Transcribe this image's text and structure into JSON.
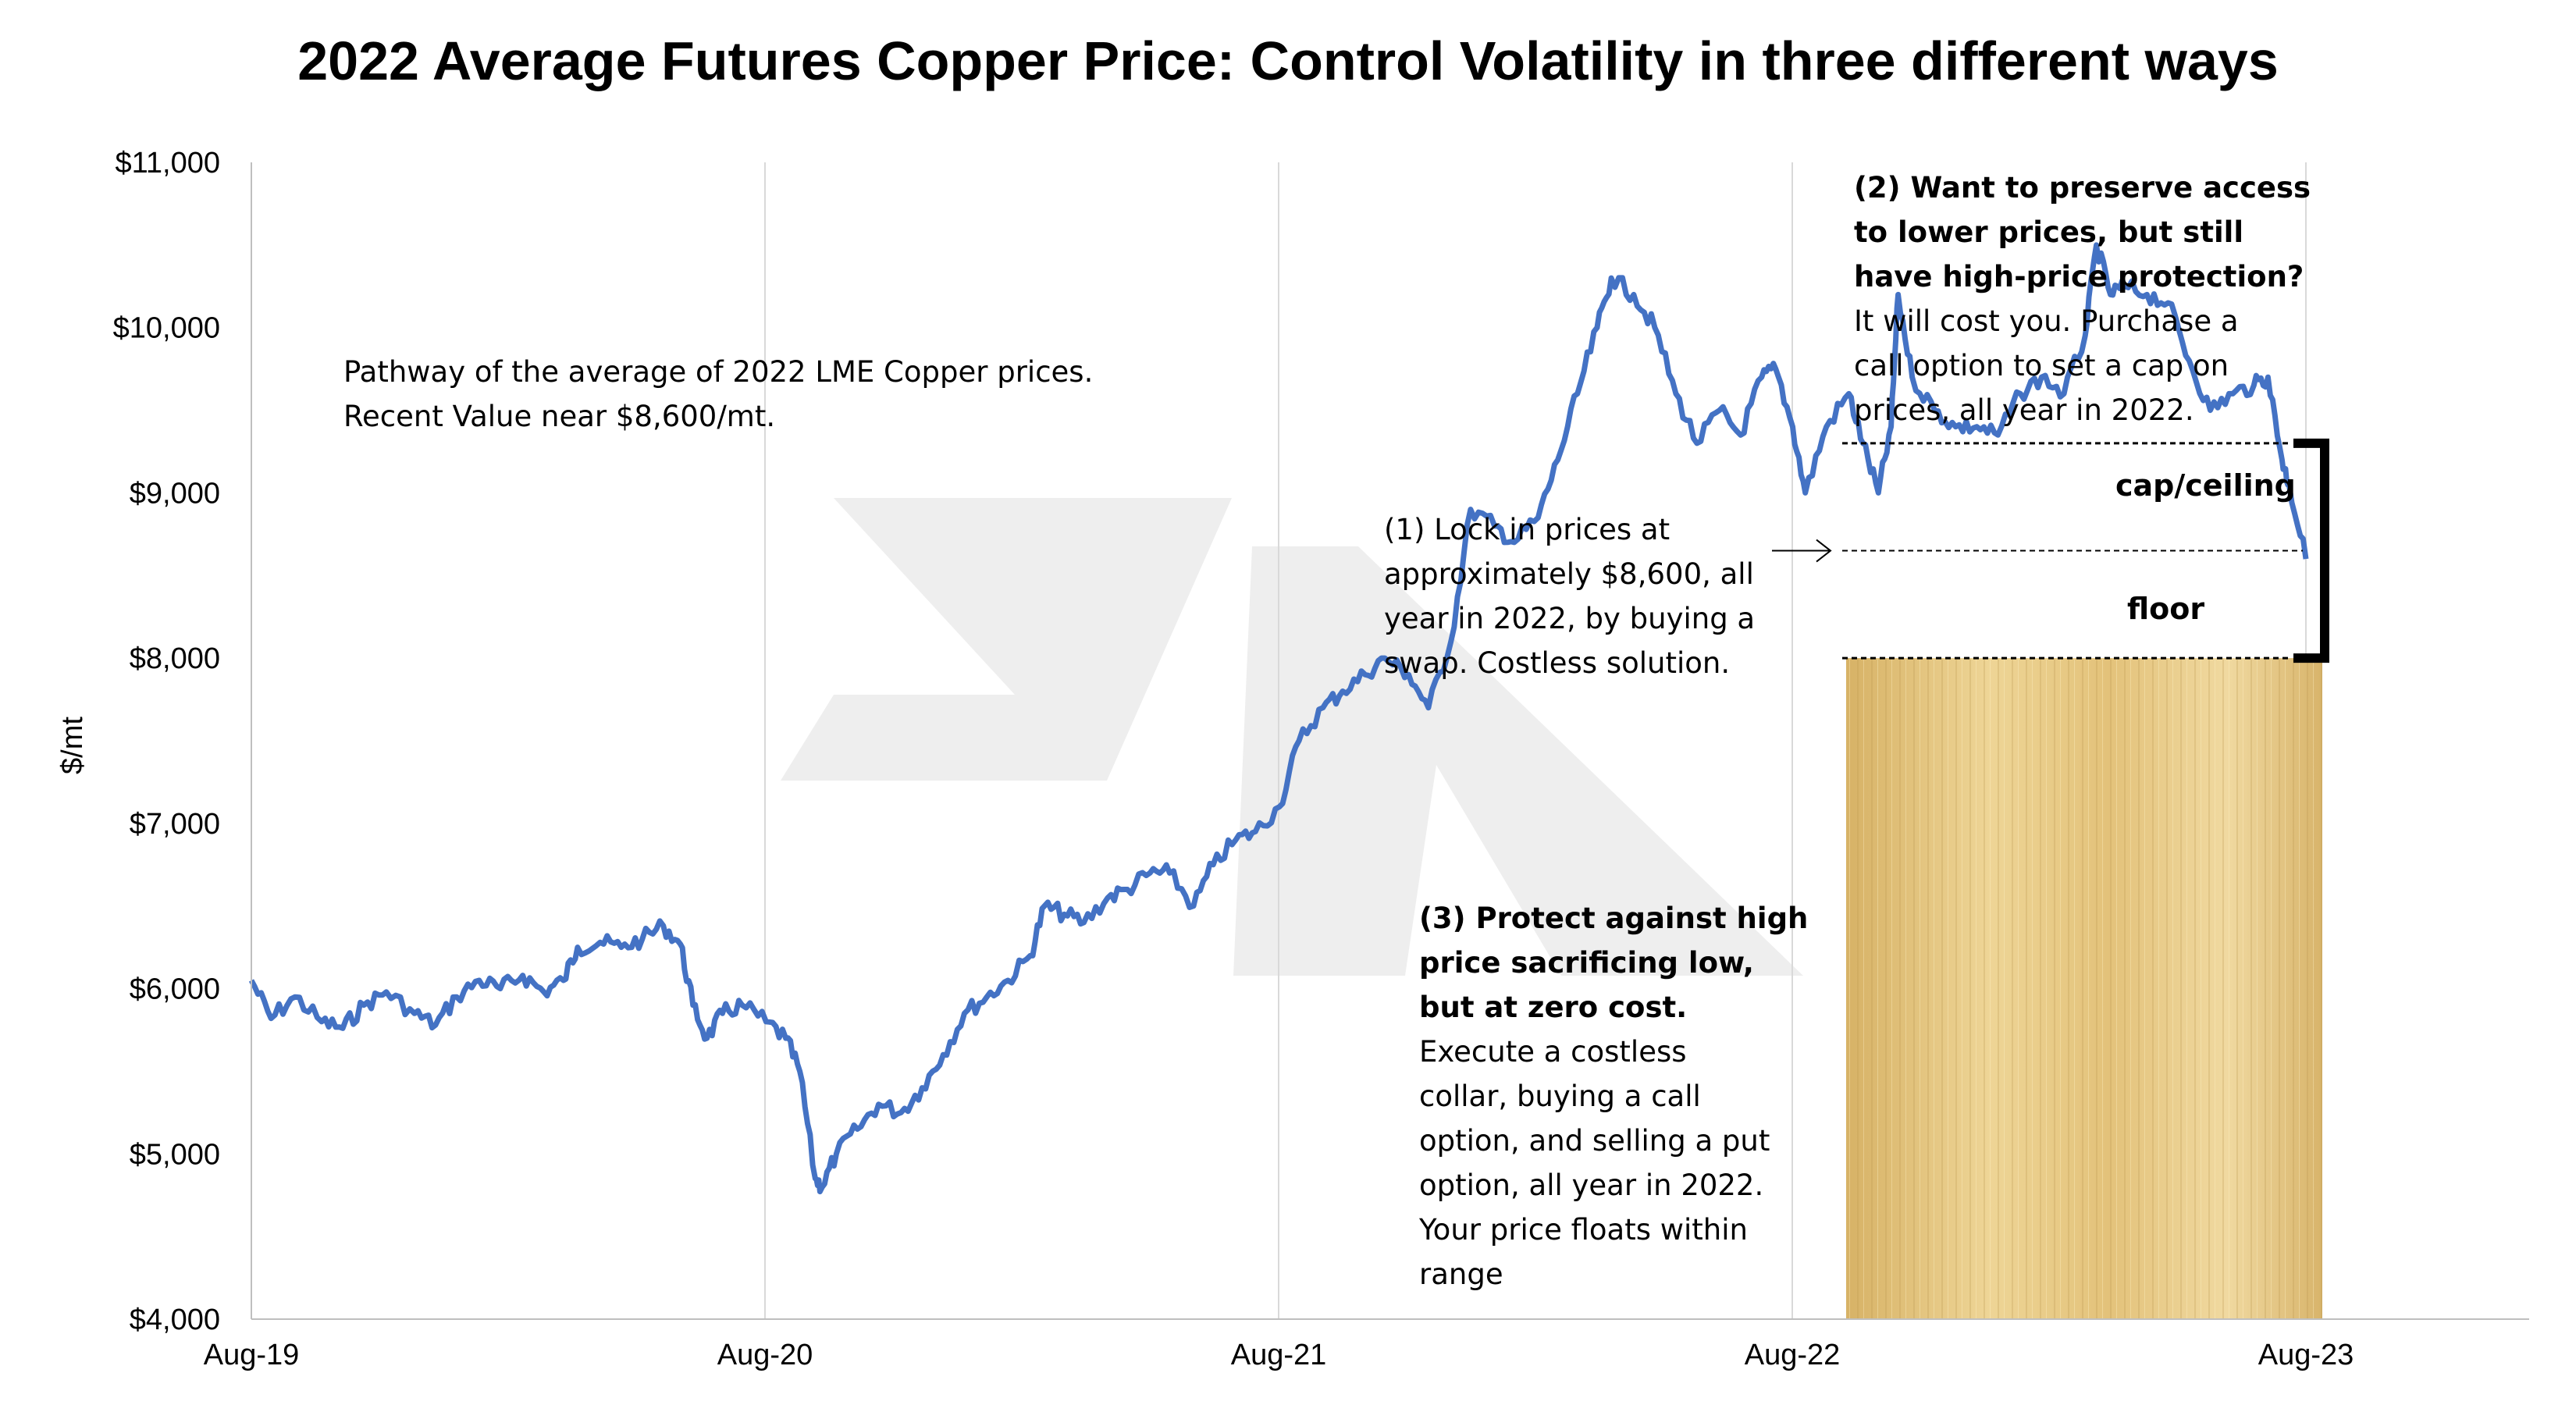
{
  "chart_data": {
    "type": "line",
    "title": "2022 Average Futures Copper Price: Control Volatility in three different ways",
    "xlabel": "",
    "ylabel": "$/mt",
    "ylim": [
      4000,
      11000
    ],
    "y_ticks": [
      4000,
      5000,
      6000,
      7000,
      8000,
      9000,
      10000,
      11000
    ],
    "y_tick_labels": [
      "$4,000",
      "$5,000",
      "$6,000",
      "$7,000",
      "$8,000",
      "$9,000",
      "$10,000",
      "$11,000"
    ],
    "x_tick_labels": [
      "Aug-19",
      "Aug-20",
      "Aug-21",
      "Aug-22",
      "Aug-23"
    ],
    "xlim": [
      "2019-08",
      "2023-12"
    ],
    "grid": "vertical lines at x ticks",
    "line_color": "#4472C4",
    "series": [
      {
        "points": [
          [
            "2019-08-01",
            6050
          ],
          [
            "2019-08-15",
            5820
          ],
          [
            "2019-09-01",
            5950
          ],
          [
            "2019-09-20",
            5800
          ],
          [
            "2019-10-05",
            5760
          ],
          [
            "2019-10-20",
            5900
          ],
          [
            "2019-11-05",
            5980
          ],
          [
            "2019-11-25",
            5850
          ],
          [
            "2019-12-10",
            5780
          ],
          [
            "2019-12-25",
            5950
          ],
          [
            "2020-01-10",
            6050
          ],
          [
            "2020-01-25",
            6000
          ],
          [
            "2020-02-10",
            6080
          ],
          [
            "2020-02-25",
            5980
          ],
          [
            "2020-03-10",
            6050
          ],
          [
            "2020-03-20",
            6250
          ],
          [
            "2020-04-05",
            6280
          ],
          [
            "2020-04-20",
            6250
          ],
          [
            "2020-05-05",
            6300
          ],
          [
            "2020-05-20",
            6380
          ],
          [
            "2020-06-01",
            6270
          ],
          [
            "2020-06-10",
            5900
          ],
          [
            "2020-06-20",
            5700
          ],
          [
            "2020-07-01",
            5850
          ],
          [
            "2020-07-15",
            5900
          ],
          [
            "2020-08-01",
            5800
          ],
          [
            "2020-08-15",
            5700
          ],
          [
            "2020-08-25",
            5500
          ],
          [
            "2020-09-05",
            4850
          ],
          [
            "2020-09-10",
            4800
          ],
          [
            "2020-09-20",
            5000
          ],
          [
            "2020-10-05",
            5150
          ],
          [
            "2020-10-20",
            5300
          ],
          [
            "2020-11-05",
            5250
          ],
          [
            "2020-11-20",
            5400
          ],
          [
            "2020-12-05",
            5600
          ],
          [
            "2020-12-20",
            5850
          ],
          [
            "2021-01-05",
            5950
          ],
          [
            "2021-01-20",
            6050
          ],
          [
            "2021-02-05",
            6200
          ],
          [
            "2021-02-15",
            6500
          ],
          [
            "2021-03-01",
            6450
          ],
          [
            "2021-03-15",
            6400
          ],
          [
            "2021-04-01",
            6550
          ],
          [
            "2021-04-15",
            6600
          ],
          [
            "2021-05-01",
            6700
          ],
          [
            "2021-05-15",
            6700
          ],
          [
            "2021-06-01",
            6500
          ],
          [
            "2021-06-15",
            6750
          ],
          [
            "2021-07-01",
            6900
          ],
          [
            "2021-07-15",
            6950
          ],
          [
            "2021-08-01",
            7100
          ],
          [
            "2021-08-15",
            7500
          ],
          [
            "2021-09-01",
            7700
          ],
          [
            "2021-09-15",
            7800
          ],
          [
            "2021-10-01",
            7900
          ],
          [
            "2021-10-15",
            8000
          ],
          [
            "2021-11-01",
            7900
          ],
          [
            "2021-11-15",
            7700
          ],
          [
            "2021-12-01",
            8100
          ],
          [
            "2021-12-15",
            8900
          ],
          [
            "2022-01-01",
            8800
          ],
          [
            "2022-01-15",
            8700
          ],
          [
            "2022-02-01",
            8850
          ],
          [
            "2022-02-15",
            9200
          ],
          [
            "2022-03-01",
            9600
          ],
          [
            "2022-03-15",
            10000
          ],
          [
            "2022-03-25",
            10300
          ],
          [
            "2022-04-10",
            10200
          ],
          [
            "2022-04-25",
            10000
          ],
          [
            "2022-05-10",
            9600
          ],
          [
            "2022-05-25",
            9300
          ],
          [
            "2022-06-10",
            9500
          ],
          [
            "2022-06-25",
            9350
          ],
          [
            "2022-07-10",
            9700
          ],
          [
            "2022-07-20",
            9750
          ],
          [
            "2022-08-01",
            9400
          ],
          [
            "2022-08-10",
            9000
          ],
          [
            "2022-08-25",
            9400
          ],
          [
            "2022-09-10",
            9600
          ],
          [
            "2022-09-20",
            9300
          ],
          [
            "2022-10-01",
            9000
          ],
          [
            "2022-10-10",
            9400
          ],
          [
            "2022-10-15",
            10200
          ],
          [
            "2022-10-25",
            9700
          ],
          [
            "2022-11-10",
            9500
          ],
          [
            "2022-11-25",
            9400
          ],
          [
            "2022-12-10",
            9400
          ],
          [
            "2022-12-25",
            9350
          ],
          [
            "2023-01-10",
            9600
          ],
          [
            "2023-01-25",
            9700
          ],
          [
            "2023-02-10",
            9600
          ],
          [
            "2023-02-25",
            9950
          ],
          [
            "2023-03-05",
            10500
          ],
          [
            "2023-03-15",
            10200
          ],
          [
            "2023-03-25",
            10250
          ],
          [
            "2023-04-10",
            10200
          ],
          [
            "2023-04-25",
            10150
          ],
          [
            "2023-05-10",
            9800
          ],
          [
            "2023-05-25",
            9500
          ],
          [
            "2023-06-10",
            9600
          ],
          [
            "2023-06-25",
            9650
          ],
          [
            "2023-07-05",
            9700
          ],
          [
            "2023-07-15",
            9200
          ],
          [
            "2023-07-20",
            9050
          ],
          [
            "2023-08-01",
            8600
          ]
        ]
      }
    ],
    "brackets": {
      "cap": 9300,
      "mid": 8650,
      "floor": 8000
    },
    "shaded_range": [
      4000,
      8000
    ],
    "annotations": {
      "pathway": [
        "Pathway of the average of 2022 LME Copper prices.",
        "Recent Value near $8,600/mt."
      ],
      "swap": [
        "(1) Lock in prices at",
        "approximately $8,600, all",
        "year in 2022, by buying a",
        "swap. Costless solution."
      ],
      "call_bold": [
        "(2) Want to preserve access",
        "to lower prices, but still",
        "have high-price protection?"
      ],
      "call_normal": [
        "It will cost you. Purchase a",
        "call option to set a cap on",
        "prices, all year in 2022."
      ],
      "collar_bold": [
        "(3) Protect against high",
        "price sacrificing low,",
        "but at zero cost."
      ],
      "collar_normal": [
        "Execute a costless",
        "collar, buying a call",
        "option, and selling a put",
        "option, all year in 2022.",
        "Your price floats within",
        "range"
      ],
      "cap_label": "cap/ceiling",
      "floor_label": "floor"
    }
  }
}
